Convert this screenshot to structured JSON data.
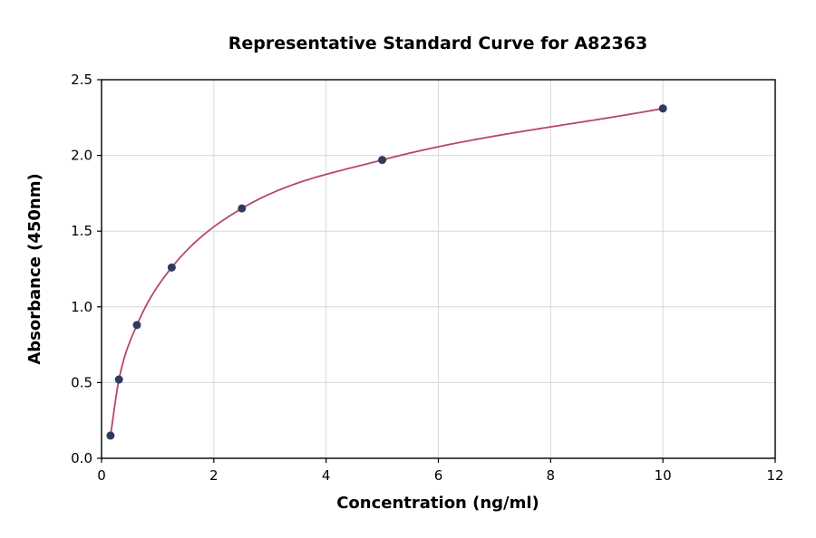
{
  "chart_data": {
    "type": "line",
    "title": "Representative Standard Curve for A82363",
    "xlabel": "Concentration (ng/ml)",
    "ylabel": "Absorbance (450nm)",
    "xlim": [
      0,
      12
    ],
    "ylim": [
      0,
      2.5
    ],
    "x_ticks": [
      0,
      2,
      4,
      6,
      8,
      10,
      12
    ],
    "y_ticks": [
      0.0,
      0.5,
      1.0,
      1.5,
      2.0,
      2.5
    ],
    "grid": true,
    "legend": "none",
    "series": [
      {
        "name": "standard-curve",
        "x": [
          0.16,
          0.31,
          0.63,
          1.25,
          2.5,
          5.0,
          10.0
        ],
        "y": [
          0.15,
          0.52,
          0.88,
          1.26,
          1.65,
          1.97,
          2.31
        ]
      }
    ],
    "colors": {
      "curve": "#b5476b",
      "points": "#2f3b5c",
      "grid": "#d9d9d9",
      "border": "#000000",
      "background": "#ffffff"
    }
  }
}
